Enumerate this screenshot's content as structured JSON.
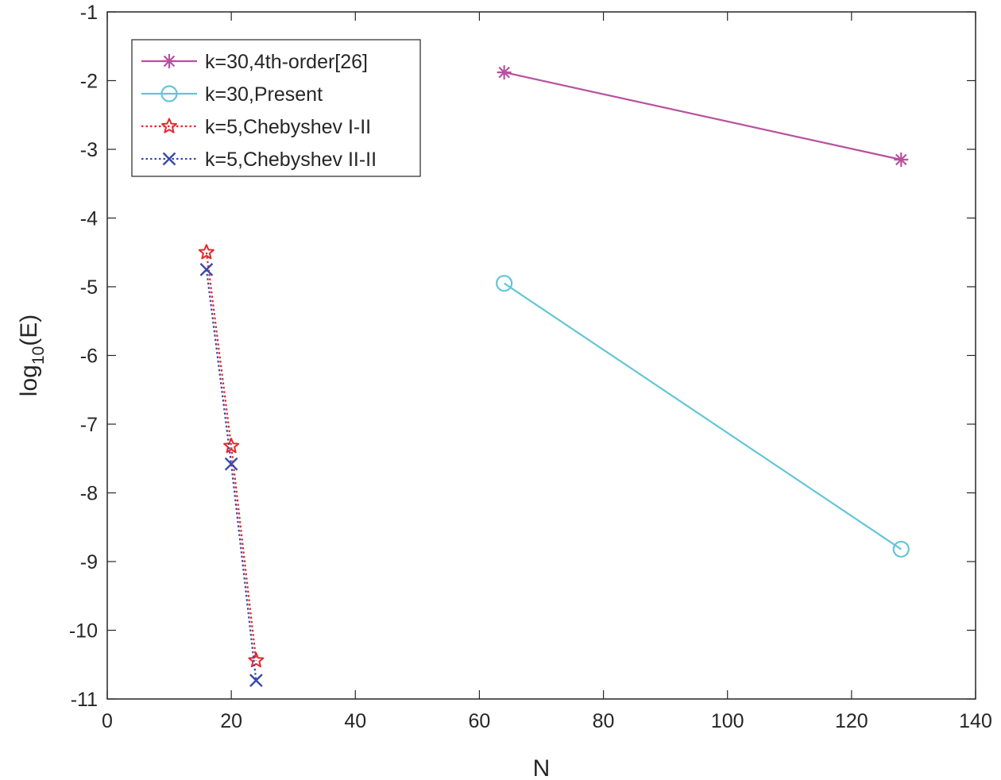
{
  "chart_data": {
    "type": "line",
    "xlabel": "N",
    "ylabel_base": "log",
    "ylabel_sub": "10",
    "ylabel_arg": "(E)",
    "xlim": [
      0,
      140
    ],
    "ylim": [
      -11,
      -1
    ],
    "xticks": [
      0,
      20,
      40,
      60,
      80,
      100,
      120,
      140
    ],
    "yticks": [
      -11,
      -10,
      -9,
      -8,
      -7,
      -6,
      -5,
      -4,
      -3,
      -2,
      -1
    ],
    "grid": false,
    "legend_position": "top-left",
    "series": [
      {
        "name": "k=30,4th-order[26]",
        "x": [
          64,
          128
        ],
        "y": [
          -1.88,
          -3.15
        ],
        "color": "#b8519e",
        "marker": "asterisk",
        "dash": "solid"
      },
      {
        "name": "k=30,Present",
        "x": [
          64,
          128
        ],
        "y": [
          -4.95,
          -8.82
        ],
        "color": "#62c6d8",
        "marker": "circle",
        "dash": "solid"
      },
      {
        "name": "k=5,Chebyshev I-II",
        "x": [
          16,
          20,
          24
        ],
        "y": [
          -4.5,
          -7.32,
          -10.44
        ],
        "color": "#e8262b",
        "marker": "star",
        "dash": "dotted"
      },
      {
        "name": "k=5,Chebyshev II-II",
        "x": [
          16,
          20,
          24
        ],
        "y": [
          -4.75,
          -7.58,
          -10.73
        ],
        "color": "#3a4aa8",
        "marker": "x",
        "dash": "dotted"
      }
    ]
  }
}
